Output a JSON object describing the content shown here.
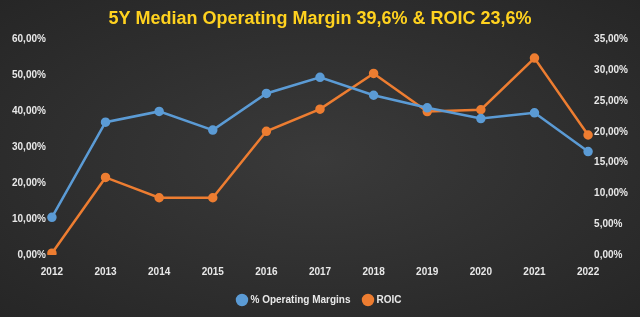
{
  "chart_data": {
    "type": "line",
    "title": "5Y Median Operating Margin 39,6% & ROIC 23,6%",
    "categories": [
      "2012",
      "2013",
      "2014",
      "2015",
      "2016",
      "2017",
      "2018",
      "2019",
      "2020",
      "2021",
      "2022"
    ],
    "series": [
      {
        "name": "% Operating Margins",
        "color": "#5b9bd5",
        "marker": "circle",
        "values": [
          10.5,
          37,
          40,
          34.8,
          45,
          49.5,
          44.5,
          41,
          38,
          39.6,
          28.8
        ]
      },
      {
        "name": "ROIC",
        "color": "#ed7d31",
        "marker": "circle",
        "axis": "y2",
        "values": [
          0.3,
          12.6,
          9.3,
          9.3,
          20.1,
          23.7,
          29.5,
          23.3,
          23.6,
          32,
          19.5
        ]
      }
    ],
    "ylim": [
      0,
      60
    ],
    "yticks": [
      {
        "value": 0,
        "label": "0,00%"
      },
      {
        "value": 10,
        "label": "10,00%"
      },
      {
        "value": 20,
        "label": "20,00%"
      },
      {
        "value": 30,
        "label": "30,00%"
      },
      {
        "value": 40,
        "label": "40,00%"
      },
      {
        "value": 50,
        "label": "50,00%"
      },
      {
        "value": 60,
        "label": "60,00%"
      }
    ],
    "y2lim": [
      0,
      35
    ],
    "y2ticks": [
      {
        "value": 0,
        "label": "0,00%"
      },
      {
        "value": 5,
        "label": "5,00%"
      },
      {
        "value": 10,
        "label": "10,00%"
      },
      {
        "value": 15,
        "label": "15,00%"
      },
      {
        "value": 20,
        "label": "20,00%"
      },
      {
        "value": 25,
        "label": "25,00%"
      },
      {
        "value": 30,
        "label": "30,00%"
      },
      {
        "value": 35,
        "label": "35,00%"
      }
    ],
    "grid": false,
    "legend": "bottom"
  }
}
